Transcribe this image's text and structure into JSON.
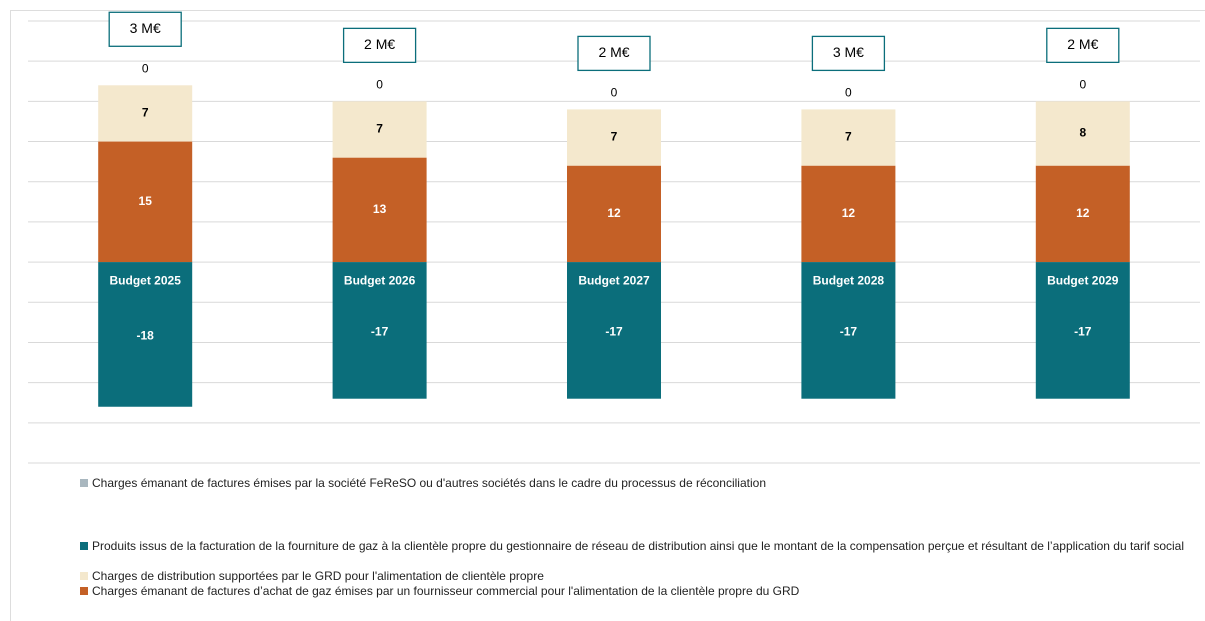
{
  "chart_data": {
    "type": "bar",
    "categories": [
      "Budget 2025",
      "Budget 2026",
      "Budget 2027",
      "Budget 2028",
      "Budget 2029"
    ],
    "annotations": [
      "3 M€",
      "2 M€",
      "2 M€",
      "3 M€",
      "2 M€"
    ],
    "series": [
      {
        "name": "Charges émanant de factures émises par la société FeReSO ou d'autres sociétés dans le cadre du processus de réconciliation",
        "color": "#a9b7bf",
        "values": [
          0,
          0,
          0,
          0,
          0
        ]
      },
      {
        "name": "Produits issus de la facturation de la fourniture de gaz à la clientèle propre du gestionnaire de réseau de distribution ainsi que le montant de la compensation perçue et résultant de l’application du tarif social",
        "color": "#0b6e7b",
        "values": [
          -18,
          -17,
          -17,
          -17,
          -17
        ]
      },
      {
        "name": "Charges de distribution supportées par le GRD pour l'alimentation de clientèle propre",
        "color": "#f4e8cd",
        "values": [
          7,
          7,
          7,
          7,
          8
        ]
      },
      {
        "name": "Charges émanant de factures d’achat de gaz émises par un fournisseur commercial pour l'alimentation de la clientèle propre du GRD",
        "color": "#c46026",
        "values": [
          15,
          13,
          12,
          12,
          12
        ]
      }
    ],
    "ylim": [
      -25,
      30
    ],
    "yticks": [
      -25,
      -20,
      -15,
      -10,
      -5,
      0,
      5,
      10,
      15,
      20,
      25,
      30
    ],
    "grid": true,
    "stacked": true
  }
}
